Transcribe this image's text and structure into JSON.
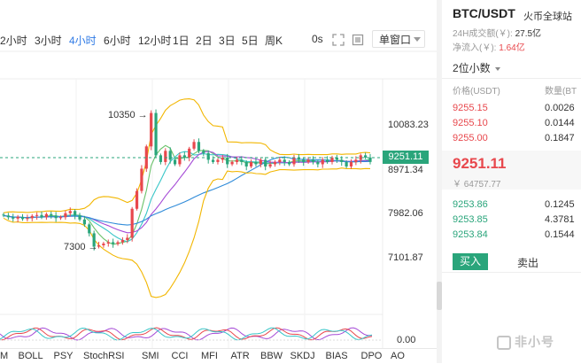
{
  "toolbar": {
    "periods": [
      {
        "label": "2小时",
        "active": false
      },
      {
        "label": "3小时",
        "active": false
      },
      {
        "label": "4小时",
        "active": true
      },
      {
        "label": "6小时",
        "active": false
      },
      {
        "label": "12小时",
        "active": false
      },
      {
        "label": "1日",
        "active": false
      },
      {
        "label": "2日",
        "active": false
      },
      {
        "label": "3日",
        "active": false
      },
      {
        "label": "5日",
        "active": false
      },
      {
        "label": "周K",
        "active": false
      }
    ],
    "zoom_label": "0s",
    "window_label": "单窗口",
    "icons": [
      "fullscreen-icon",
      "layout-icon"
    ]
  },
  "chart": {
    "price_axis": [
      "10083.23",
      "8971.34",
      "7982.06",
      "7101.87"
    ],
    "last_price": "9251.11",
    "high_annotation": "10350",
    "low_annotation": "7300",
    "oscillator_axis": "0.00",
    "colors": {
      "up": "#e8484d",
      "down": "#2aa57b",
      "ma_yellow": "#f2b600",
      "ma_teal": "#38c6c8",
      "ma_purple": "#a54ad6",
      "ma_blue": "#2f8bd9",
      "ma_green": "#6ac26a"
    }
  },
  "indicators": [
    "M",
    "BOLL",
    "PSY",
    "StochRSI",
    "SMI",
    "CCI",
    "MFI",
    "ATR",
    "BBW",
    "SKDJ",
    "BIAS",
    "DPO",
    "AO"
  ],
  "chart_data": {
    "type": "candlestick",
    "symbol": "BTC/USDT",
    "interval": "4小时",
    "y_ticks": [
      10083.23,
      8971.34,
      7982.06,
      7101.87
    ],
    "last": 9251.11,
    "annotations": [
      {
        "label": "10350",
        "value": 10350
      },
      {
        "label": "7300",
        "value": 7300
      }
    ],
    "series_approx_close": [
      8050,
      8010,
      7980,
      8020,
      7970,
      7990,
      8040,
      8060,
      8010,
      8080,
      8050,
      7990,
      8010,
      8100,
      8150,
      8050,
      7960,
      7850,
      7650,
      7350,
      7380,
      7420,
      7450,
      7410,
      7450,
      7500,
      7550,
      8200,
      8600,
      9100,
      9600,
      10350,
      9400,
      9250,
      9500,
      9300,
      9200,
      9400,
      9350,
      9550,
      9700,
      9500,
      9450,
      9300,
      9250,
      9300,
      9350,
      9200,
      9250,
      9300,
      9250,
      9150,
      9250,
      9200,
      9300,
      9150,
      9200,
      9250,
      9300,
      9250,
      9200,
      9350,
      9300,
      9250,
      9300,
      9250,
      9200,
      9300,
      9250,
      9350,
      9300,
      9250,
      9150,
      9250,
      9300,
      9400,
      9350,
      9251.11
    ]
  },
  "market": {
    "pair": "BTC/USDT",
    "exchange": "火币全球站",
    "volume_label": "24H成交额(￥):",
    "volume_value": "27.5亿",
    "netflow_label": "净流入(￥):",
    "netflow_value": "1.64亿",
    "precision": "2位小数",
    "price_header": "价格(USDT)",
    "qty_header": "数量(BT",
    "asks": [
      {
        "price": "9255.15",
        "qty": "0.0026"
      },
      {
        "price": "9255.10",
        "qty": "0.0144"
      },
      {
        "price": "9255.00",
        "qty": "0.1847"
      }
    ],
    "last_price": "9251.11",
    "last_cny": "￥ 64757.77",
    "bids": [
      {
        "price": "9253.86",
        "qty": "0.1245"
      },
      {
        "price": "9253.85",
        "qty": "4.3781"
      },
      {
        "price": "9253.84",
        "qty": "0.1544"
      }
    ],
    "buy_label": "买入",
    "sell_label": "卖出",
    "watermark": "非小号"
  }
}
